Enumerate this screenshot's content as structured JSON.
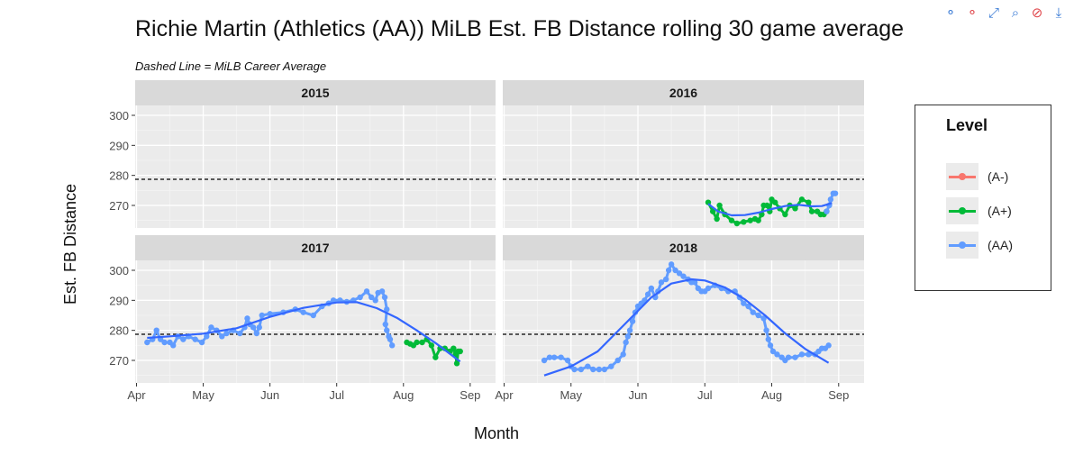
{
  "page": {
    "title": "Richie Martin (Athletics (AA)) MiLB Est. FB Distance rolling 30 game average",
    "subtitle": "Dashed Line = MiLB Career Average"
  },
  "modebar": [
    {
      "name": "compare-hover-icon",
      "glyph": "⚬",
      "color": "#3a7bd5"
    },
    {
      "name": "closest-hover-icon",
      "glyph": "⚬",
      "color": "#e0474c"
    },
    {
      "name": "autoscale-icon",
      "glyph": "⤢",
      "color": "#3a7bd5"
    },
    {
      "name": "zoom-icon",
      "glyph": "⌕",
      "color": "#3a7bd5"
    },
    {
      "name": "reset-axes-icon",
      "glyph": "⊘",
      "color": "#e0474c"
    },
    {
      "name": "download-icon",
      "glyph": "⤓",
      "color": "#3a7bd5"
    }
  ],
  "legend": {
    "title": "Level",
    "items": [
      {
        "label": "(A-)",
        "color": "#F8766D"
      },
      {
        "label": "(A+)",
        "color": "#00BA38"
      },
      {
        "label": "(AA)",
        "color": "#619CFF"
      }
    ]
  },
  "chart_data": {
    "type": "line",
    "xlabel": "Month",
    "ylabel": "Est. FB Distance",
    "ylim": [
      262.5,
      303.3
    ],
    "yticks": [
      270,
      280,
      290,
      300
    ],
    "xticks": [
      {
        "label": "Apr",
        "m": 4.0
      },
      {
        "label": "May",
        "m": 5.0
      },
      {
        "label": "Jun",
        "m": 6.0
      },
      {
        "label": "Jul",
        "m": 7.0
      },
      {
        "label": "Aug",
        "m": 8.0
      },
      {
        "label": "Sep",
        "m": 9.0
      }
    ],
    "xlim": [
      3.98,
      9.38
    ],
    "career_average": 278.7,
    "panels": [
      {
        "year": "2015",
        "series": []
      },
      {
        "year": "2016",
        "series": [
          {
            "level": "(A+)",
            "color": "#00BA38",
            "points": [
              [
                7.05,
                271
              ],
              [
                7.12,
                268
              ],
              [
                7.18,
                265.5
              ],
              [
                7.22,
                270
              ],
              [
                7.3,
                267
              ],
              [
                7.4,
                265
              ],
              [
                7.48,
                264
              ],
              [
                7.58,
                264.5
              ],
              [
                7.68,
                265
              ],
              [
                7.75,
                265.5
              ],
              [
                7.8,
                265
              ],
              [
                7.85,
                267
              ],
              [
                7.88,
                270
              ],
              [
                7.93,
                270
              ],
              [
                7.97,
                268
              ],
              [
                8.0,
                272
              ],
              [
                8.05,
                271
              ],
              [
                8.12,
                269
              ],
              [
                8.2,
                267
              ],
              [
                8.27,
                270
              ],
              [
                8.35,
                269
              ],
              [
                8.45,
                272
              ],
              [
                8.55,
                271
              ],
              [
                8.6,
                268
              ],
              [
                8.68,
                268
              ],
              [
                8.73,
                267
              ],
              [
                8.78,
                267
              ],
              [
                8.82,
                268
              ]
            ]
          },
          {
            "level": "(AA)",
            "color": "#619CFF",
            "points": [
              [
                8.82,
                268
              ],
              [
                8.86,
                270
              ],
              [
                8.88,
                272
              ],
              [
                8.92,
                274
              ],
              [
                8.95,
                274
              ]
            ]
          },
          {
            "level": "smooth",
            "color": "#3366FF",
            "points": [
              [
                7.05,
                270.5
              ],
              [
                7.2,
                268
              ],
              [
                7.4,
                266.7
              ],
              [
                7.6,
                266.8
              ],
              [
                7.8,
                267.6
              ],
              [
                8.0,
                268.8
              ],
              [
                8.2,
                269.8
              ],
              [
                8.4,
                270.2
              ],
              [
                8.6,
                269.7
              ],
              [
                8.75,
                269.8
              ],
              [
                8.9,
                270.8
              ]
            ]
          }
        ]
      },
      {
        "year": "2017",
        "series": [
          {
            "level": "(AA)",
            "color": "#619CFF",
            "points": [
              [
                4.16,
                276
              ],
              [
                4.24,
                277
              ],
              [
                4.3,
                280
              ],
              [
                4.36,
                277
              ],
              [
                4.42,
                276
              ],
              [
                4.5,
                276
              ],
              [
                4.55,
                275
              ],
              [
                4.62,
                278
              ],
              [
                4.7,
                277
              ],
              [
                4.78,
                278
              ],
              [
                4.88,
                277
              ],
              [
                4.98,
                276
              ],
              [
                5.05,
                278
              ],
              [
                5.12,
                281
              ],
              [
                5.2,
                280
              ],
              [
                5.28,
                278
              ],
              [
                5.35,
                279
              ],
              [
                5.45,
                280
              ],
              [
                5.55,
                279
              ],
              [
                5.62,
                281
              ],
              [
                5.66,
                284
              ],
              [
                5.7,
                282
              ],
              [
                5.75,
                281
              ],
              [
                5.8,
                279
              ],
              [
                5.84,
                281
              ],
              [
                5.88,
                285
              ],
              [
                6.0,
                285.5
              ],
              [
                6.2,
                286
              ],
              [
                6.38,
                287
              ],
              [
                6.5,
                286
              ],
              [
                6.65,
                285
              ],
              [
                6.78,
                288
              ],
              [
                6.88,
                289
              ],
              [
                6.95,
                290
              ],
              [
                7.05,
                290
              ],
              [
                7.15,
                289.5
              ],
              [
                7.25,
                290
              ],
              [
                7.35,
                291
              ],
              [
                7.45,
                293
              ],
              [
                7.52,
                291
              ],
              [
                7.58,
                290
              ],
              [
                7.62,
                292.5
              ],
              [
                7.68,
                293
              ],
              [
                7.72,
                291
              ],
              [
                7.75,
                287
              ],
              [
                7.73,
                282
              ],
              [
                7.75,
                280
              ],
              [
                7.78,
                278
              ],
              [
                7.8,
                277
              ],
              [
                7.83,
                275
              ]
            ]
          },
          {
            "level": "(A+)",
            "color": "#00BA38",
            "points": [
              [
                8.05,
                276
              ],
              [
                8.1,
                275.5
              ],
              [
                8.15,
                275
              ],
              [
                8.2,
                276
              ],
              [
                8.28,
                276
              ],
              [
                8.35,
                277
              ],
              [
                8.42,
                275
              ],
              [
                8.48,
                271
              ],
              [
                8.55,
                274
              ],
              [
                8.62,
                274
              ],
              [
                8.7,
                273
              ],
              [
                8.75,
                274
              ],
              [
                8.78,
                272
              ],
              [
                8.8,
                269
              ],
              [
                8.82,
                273
              ],
              [
                8.85,
                273
              ]
            ]
          },
          {
            "level": "smooth",
            "color": "#3366FF",
            "points": [
              [
                4.16,
                277.5
              ],
              [
                4.5,
                278
              ],
              [
                5.0,
                278.9
              ],
              [
                5.5,
                280.7
              ],
              [
                6.0,
                284.5
              ],
              [
                6.5,
                287.5
              ],
              [
                7.0,
                289.3
              ],
              [
                7.3,
                289.4
              ],
              [
                7.6,
                287.4
              ],
              [
                7.9,
                284.2
              ],
              [
                8.2,
                280
              ],
              [
                8.5,
                275.5
              ],
              [
                8.85,
                269.6
              ]
            ]
          }
        ]
      },
      {
        "year": "2018",
        "series": [
          {
            "level": "(AA)",
            "color": "#619CFF",
            "points": [
              [
                4.6,
                270
              ],
              [
                4.68,
                271
              ],
              [
                4.75,
                271
              ],
              [
                4.85,
                271
              ],
              [
                4.95,
                270
              ],
              [
                5.0,
                268
              ],
              [
                5.05,
                267
              ],
              [
                5.15,
                267
              ],
              [
                5.25,
                268
              ],
              [
                5.33,
                267
              ],
              [
                5.42,
                267
              ],
              [
                5.5,
                267
              ],
              [
                5.6,
                268
              ],
              [
                5.7,
                270
              ],
              [
                5.78,
                272
              ],
              [
                5.82,
                276
              ],
              [
                5.85,
                278
              ],
              [
                5.88,
                280
              ],
              [
                5.92,
                283
              ],
              [
                5.96,
                286
              ],
              [
                6.0,
                288
              ],
              [
                6.05,
                289
              ],
              [
                6.1,
                290
              ],
              [
                6.15,
                292
              ],
              [
                6.2,
                294
              ],
              [
                6.26,
                291
              ],
              [
                6.3,
                293
              ],
              [
                6.35,
                296
              ],
              [
                6.42,
                297
              ],
              [
                6.46,
                300
              ],
              [
                6.5,
                302
              ],
              [
                6.56,
                300
              ],
              [
                6.62,
                299
              ],
              [
                6.68,
                298
              ],
              [
                6.75,
                297
              ],
              [
                6.8,
                296
              ],
              [
                6.85,
                296
              ],
              [
                6.9,
                294
              ],
              [
                6.95,
                293
              ],
              [
                7.0,
                293
              ],
              [
                7.05,
                294
              ],
              [
                7.15,
                295
              ],
              [
                7.25,
                294
              ],
              [
                7.35,
                293
              ],
              [
                7.45,
                293
              ],
              [
                7.52,
                291
              ],
              [
                7.58,
                289
              ],
              [
                7.65,
                288
              ],
              [
                7.72,
                286
              ],
              [
                7.8,
                285
              ],
              [
                7.88,
                284
              ],
              [
                7.92,
                280
              ],
              [
                7.95,
                277
              ],
              [
                7.98,
                275
              ],
              [
                8.02,
                273
              ],
              [
                8.08,
                272
              ],
              [
                8.15,
                271
              ],
              [
                8.2,
                270
              ],
              [
                8.25,
                271
              ],
              [
                8.35,
                271
              ],
              [
                8.45,
                272
              ],
              [
                8.55,
                272
              ],
              [
                8.65,
                272
              ],
              [
                8.7,
                273
              ],
              [
                8.75,
                274
              ],
              [
                8.8,
                274
              ],
              [
                8.85,
                275
              ]
            ]
          },
          {
            "level": "smooth",
            "color": "#3366FF",
            "points": [
              [
                4.6,
                265
              ],
              [
                5.0,
                268
              ],
              [
                5.4,
                273
              ],
              [
                5.8,
                282
              ],
              [
                6.2,
                291
              ],
              [
                6.5,
                295.6
              ],
              [
                6.8,
                297
              ],
              [
                7.0,
                296.6
              ],
              [
                7.3,
                294.3
              ],
              [
                7.6,
                290.3
              ],
              [
                7.9,
                285
              ],
              [
                8.2,
                279
              ],
              [
                8.5,
                273.8
              ],
              [
                8.85,
                269.2
              ]
            ]
          }
        ]
      }
    ]
  }
}
